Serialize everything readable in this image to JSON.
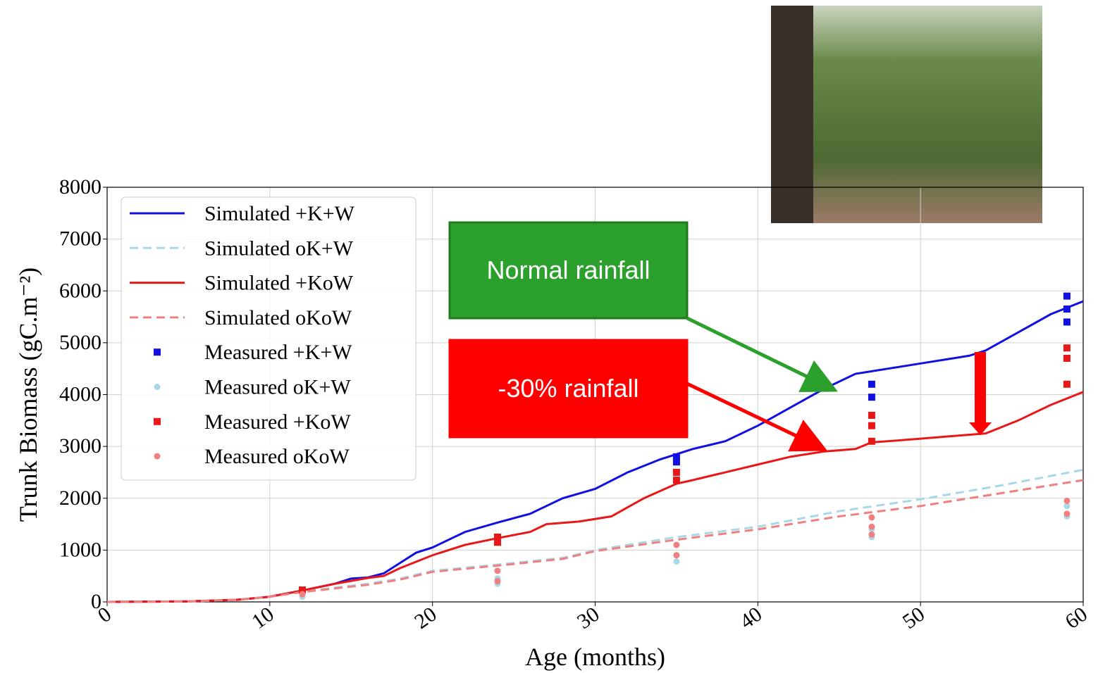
{
  "chart_data": {
    "type": "line",
    "xlabel": "Age (months)",
    "ylabel": "Trunk Biomass (gC.m⁻²)",
    "xlim": [
      0,
      60
    ],
    "ylim": [
      0,
      8000
    ],
    "xticks": [
      0,
      10,
      20,
      30,
      40,
      50,
      60
    ],
    "yticks": [
      0,
      1000,
      2000,
      3000,
      4000,
      5000,
      6000,
      7000,
      8000
    ],
    "grid": true,
    "legend": "upper left",
    "series": [
      {
        "name": "Simulated +K+W",
        "kind": "line",
        "linestyle": "solid",
        "color": "#1010e0",
        "x": [
          0,
          5,
          8,
          10,
          12,
          14,
          15,
          16,
          17,
          18,
          19,
          20,
          22,
          24,
          26,
          28,
          30,
          32,
          34,
          35,
          36,
          38,
          40,
          42,
          44,
          46,
          47,
          48,
          50,
          52,
          53,
          54,
          56,
          58,
          60
        ],
        "values": [
          0,
          10,
          40,
          100,
          220,
          350,
          450,
          470,
          550,
          750,
          950,
          1050,
          1350,
          1530,
          1700,
          2000,
          2180,
          2500,
          2750,
          2850,
          2950,
          3100,
          3400,
          3750,
          4100,
          4400,
          4450,
          4500,
          4600,
          4700,
          4750,
          4850,
          5200,
          5550,
          5800
        ]
      },
      {
        "name": "Simulated oK+W",
        "kind": "line",
        "linestyle": "dashed",
        "color": "#a8d8e8",
        "x": [
          0,
          5,
          8,
          10,
          12,
          16,
          18,
          20,
          24,
          28,
          30,
          35,
          40,
          45,
          50,
          55,
          60
        ],
        "values": [
          0,
          10,
          40,
          100,
          200,
          350,
          450,
          600,
          720,
          850,
          1000,
          1250,
          1450,
          1750,
          1980,
          2250,
          2550
        ]
      },
      {
        "name": "Simulated +KoW",
        "kind": "line",
        "linestyle": "solid",
        "color": "#e81818",
        "x": [
          0,
          5,
          8,
          10,
          12,
          14,
          16,
          17,
          18,
          20,
          22,
          24,
          26,
          27,
          29,
          31,
          33,
          35,
          36,
          38,
          40,
          42,
          44,
          46,
          47,
          48,
          50,
          52,
          54,
          56,
          58,
          60
        ],
        "values": [
          0,
          10,
          40,
          100,
          220,
          350,
          460,
          500,
          650,
          900,
          1100,
          1230,
          1350,
          1500,
          1550,
          1650,
          2000,
          2280,
          2350,
          2500,
          2650,
          2800,
          2900,
          2950,
          3080,
          3100,
          3150,
          3200,
          3250,
          3500,
          3800,
          4050
        ]
      },
      {
        "name": "Simulated oKoW",
        "kind": "line",
        "linestyle": "dashed",
        "color": "#f08080",
        "x": [
          0,
          5,
          8,
          10,
          12,
          16,
          18,
          20,
          24,
          28,
          30,
          35,
          40,
          45,
          50,
          55,
          60
        ],
        "values": [
          0,
          10,
          40,
          100,
          190,
          330,
          430,
          580,
          700,
          830,
          980,
          1200,
          1400,
          1650,
          1850,
          2100,
          2350
        ]
      },
      {
        "name": "Measured +K+W",
        "kind": "scatter",
        "marker": "square",
        "color": "#1010e0",
        "x": [
          35,
          35,
          47,
          47,
          59,
          59,
          59
        ],
        "values": [
          2700,
          2800,
          3950,
          4200,
          5400,
          5650,
          5900
        ]
      },
      {
        "name": "Measured oK+W",
        "kind": "scatter",
        "marker": "circle",
        "color": "#a8d8e8",
        "x": [
          12,
          24,
          24,
          35,
          35,
          47,
          47,
          59,
          59
        ],
        "values": [
          100,
          350,
          450,
          780,
          900,
          1250,
          1400,
          1650,
          1850
        ]
      },
      {
        "name": "Measured +KoW",
        "kind": "scatter",
        "marker": "square",
        "color": "#e81818",
        "x": [
          12,
          24,
          24,
          35,
          35,
          47,
          47,
          47,
          59,
          59,
          59
        ],
        "values": [
          230,
          1150,
          1250,
          2350,
          2500,
          3100,
          3400,
          3600,
          4200,
          4700,
          4900
        ]
      },
      {
        "name": "Measured oKoW",
        "kind": "scatter",
        "marker": "circle",
        "color": "#f08080",
        "x": [
          12,
          24,
          24,
          35,
          35,
          47,
          47,
          47,
          59,
          59
        ],
        "values": [
          150,
          400,
          600,
          900,
          1100,
          1300,
          1450,
          1630,
          1700,
          1950
        ]
      }
    ],
    "annotations": [
      {
        "text": "Normal rainfall",
        "color": "#2ca02c"
      },
      {
        "text": "-30% rainfall",
        "color": "#ff0000"
      }
    ]
  }
}
